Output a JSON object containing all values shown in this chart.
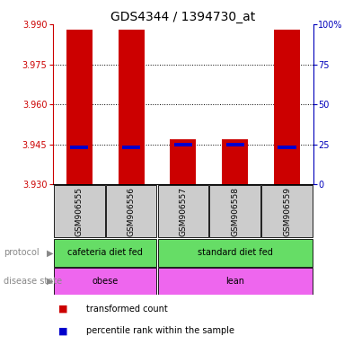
{
  "title": "GDS4344 / 1394730_at",
  "samples": [
    "GSM906555",
    "GSM906556",
    "GSM906557",
    "GSM906558",
    "GSM906559"
  ],
  "red_values": [
    3.988,
    3.988,
    3.947,
    3.947,
    3.988
  ],
  "blue_values": [
    3.944,
    3.944,
    3.945,
    3.945,
    3.944
  ],
  "ylim_left": [
    3.93,
    3.99
  ],
  "ylim_right": [
    0,
    100
  ],
  "yticks_left": [
    3.93,
    3.945,
    3.96,
    3.975,
    3.99
  ],
  "yticks_right": [
    0,
    25,
    50,
    75,
    100
  ],
  "ytick_labels_right": [
    "0",
    "25",
    "50",
    "75",
    "100%"
  ],
  "bar_width": 0.5,
  "protocol_labels": [
    "cafeteria diet fed",
    "standard diet fed"
  ],
  "protocol_color": "#66DD66",
  "disease_labels": [
    "obese",
    "lean"
  ],
  "disease_color": "#EE66EE",
  "sample_bg_color": "#CCCCCC",
  "red_color": "#CC0000",
  "blue_color": "#0000CC",
  "left_axis_color": "#CC0000",
  "right_axis_color": "#0000BB",
  "title_fontsize": 10,
  "tick_fontsize": 7,
  "label_fontsize": 7,
  "sample_fontsize": 6.5
}
